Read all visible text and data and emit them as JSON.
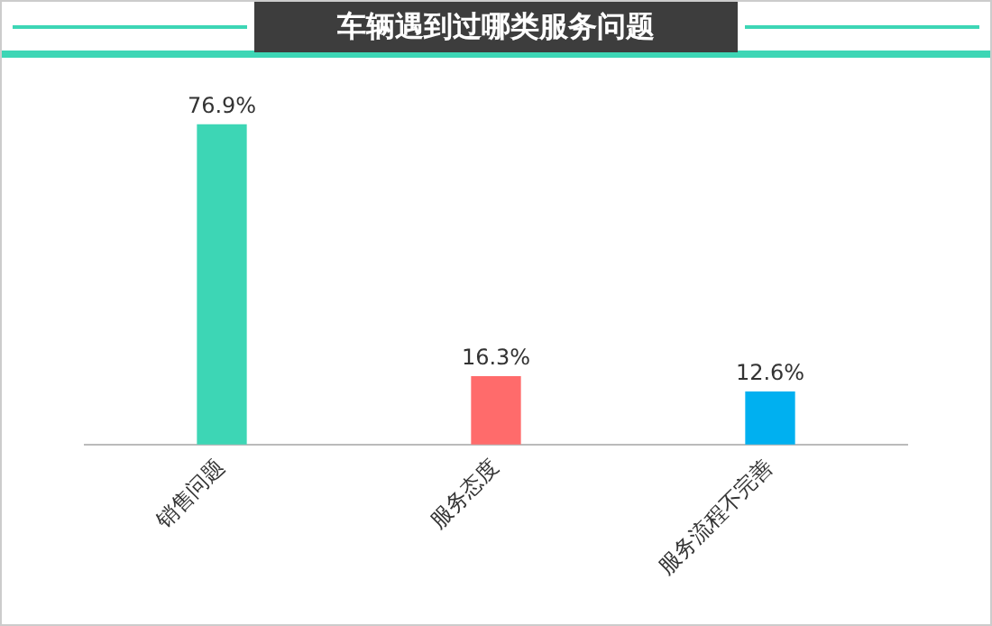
{
  "chart_data": {
    "type": "bar",
    "title": "车辆遇到过哪类服务问题",
    "categories": [
      "销售问题",
      "服务态度",
      "服务流程不完善"
    ],
    "values": [
      76.9,
      16.3,
      12.6
    ],
    "colors": [
      "#3dd6b5",
      "#ff6b6b",
      "#00b0f0"
    ],
    "value_labels": [
      "76.9%",
      "16.3%",
      "12.6%"
    ],
    "grid": false,
    "legend": false
  }
}
